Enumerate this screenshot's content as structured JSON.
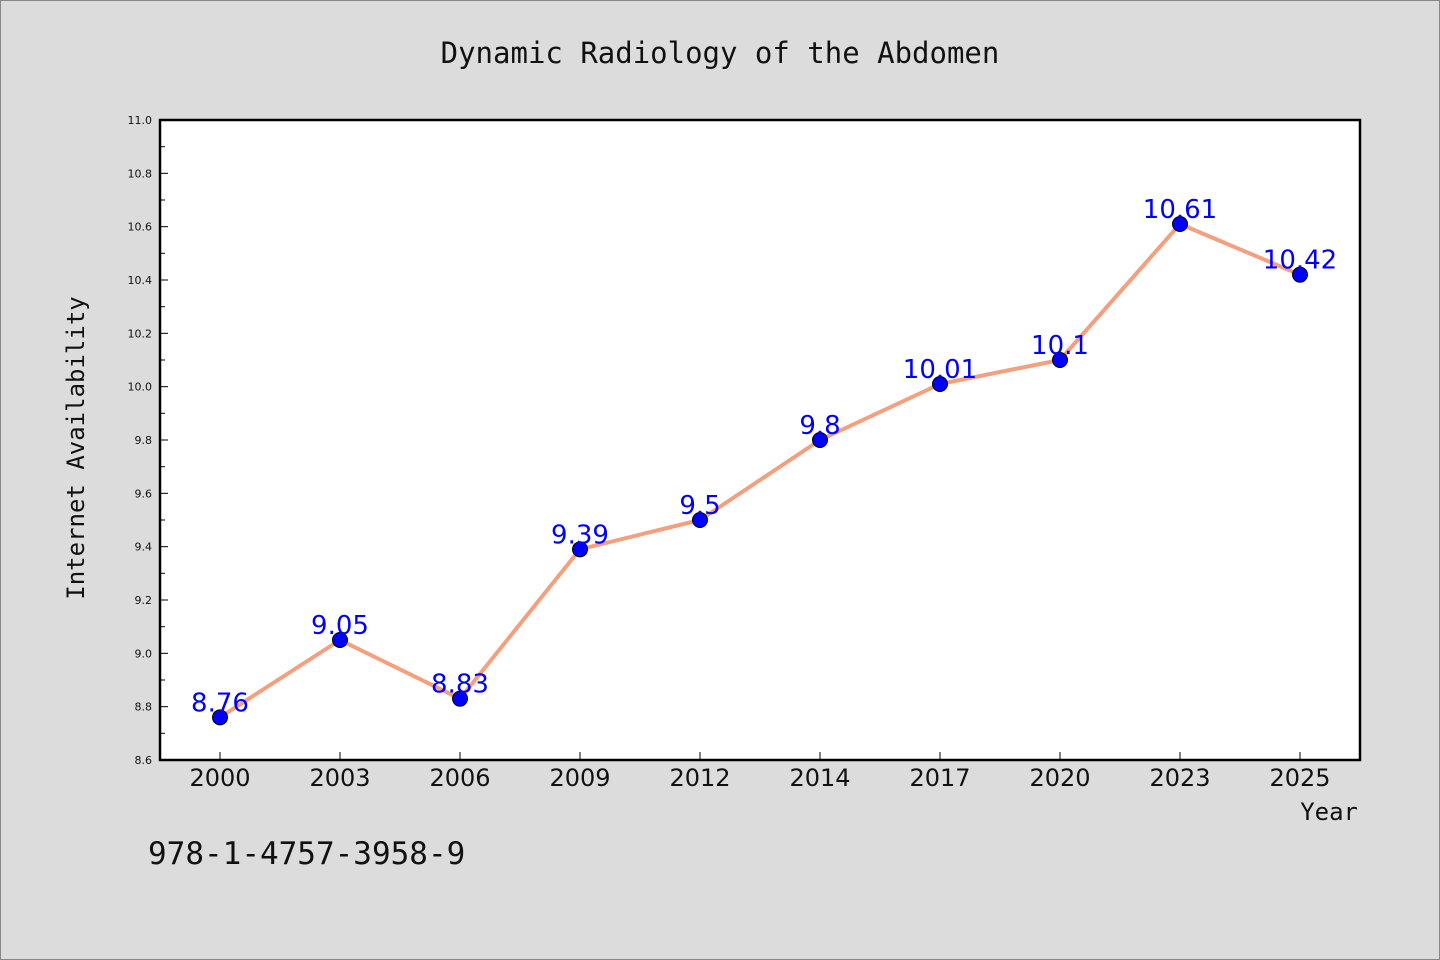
{
  "chart_data": {
    "type": "line",
    "title": "Dynamic Radiology of the Abdomen",
    "xlabel": "Year",
    "ylabel": "Internet Availability",
    "categories": [
      "2000",
      "2003",
      "2006",
      "2009",
      "2012",
      "2014",
      "2017",
      "2020",
      "2023",
      "2025"
    ],
    "series": [
      {
        "values": [
          8.76,
          9.05,
          8.83,
          9.39,
          9.5,
          9.8,
          10.01,
          10.1,
          10.61,
          10.42
        ],
        "data_labels": [
          "8.76",
          "9.05",
          "8.83",
          "9.39",
          "9.5",
          "9.8",
          "10.01",
          "10.1",
          "10.61",
          "10.42"
        ]
      }
    ],
    "ylim": [
      8.6,
      11.0
    ],
    "y_ticks": [
      "8.6",
      "8.8",
      "9.0",
      "9.2",
      "9.4",
      "9.6",
      "9.8",
      "10.0",
      "10.2",
      "10.4",
      "10.6",
      "10.8",
      "11.0"
    ],
    "grid": false,
    "colors": {
      "line": "#f4a07e",
      "marker": "#0000ff",
      "data_label": "#0000ff",
      "background": "#dcdcdc",
      "plot_background": "#ffffff"
    }
  },
  "footer": {
    "isbn": "978-1-4757-3958-9"
  }
}
